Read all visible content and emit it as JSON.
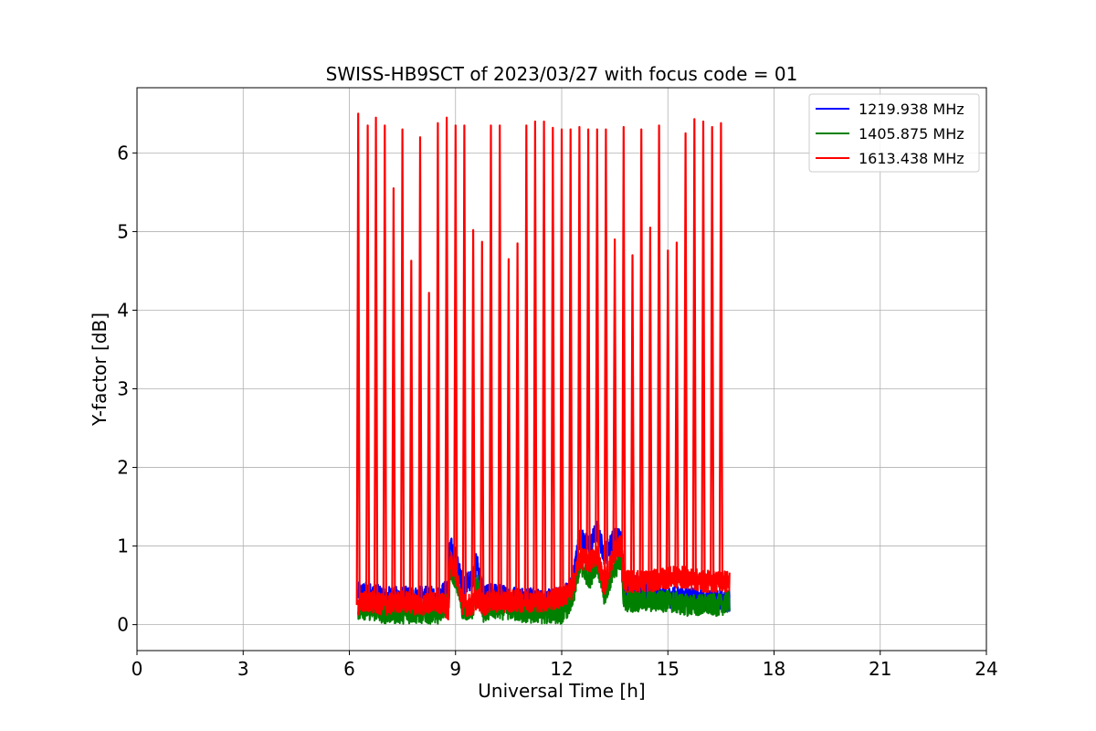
{
  "chart_data": {
    "type": "line",
    "title": "SWISS-HB9SCT of 2023/03/27 with focus code = 01",
    "xlabel": "Universal Time [h]",
    "ylabel": "Y-factor [dB]",
    "xlim": [
      0,
      24
    ],
    "ylim": [
      -0.33,
      6.83
    ],
    "xticks": [
      0,
      3,
      6,
      9,
      12,
      15,
      18,
      21,
      24
    ],
    "yticks": [
      0,
      1,
      2,
      3,
      4,
      5,
      6
    ],
    "grid": true,
    "legend_position": "top-right",
    "series": [
      {
        "name": "1219.938 MHz",
        "color": "#0000ff",
        "x": [
          6.25,
          6.5,
          7.0,
          7.5,
          8.0,
          8.5,
          8.8,
          8.85,
          9.0,
          9.2,
          9.5,
          9.6,
          9.8,
          10.0,
          10.5,
          11.0,
          11.5,
          12.0,
          12.3,
          12.5,
          12.8,
          13.0,
          13.2,
          13.5,
          13.7,
          13.75,
          14.0,
          14.5,
          15.0,
          15.5,
          16.0,
          16.5,
          16.75
        ],
        "values": [
          0.4,
          0.4,
          0.35,
          0.35,
          0.35,
          0.35,
          0.45,
          1.0,
          0.85,
          0.5,
          0.6,
          0.8,
          0.35,
          0.4,
          0.35,
          0.35,
          0.3,
          0.35,
          0.5,
          1.1,
          1.0,
          1.2,
          0.9,
          1.1,
          1.1,
          0.5,
          0.5,
          0.4,
          0.35,
          0.35,
          0.3,
          0.3,
          0.3
        ]
      },
      {
        "name": "1405.875 MHz",
        "color": "#008000",
        "x": [
          6.25,
          6.5,
          7.0,
          7.5,
          8.0,
          8.5,
          8.8,
          8.85,
          9.0,
          9.2,
          9.5,
          9.6,
          9.8,
          10.0,
          10.5,
          11.0,
          11.5,
          12.0,
          12.3,
          12.5,
          12.8,
          13.0,
          13.2,
          13.5,
          13.7,
          13.75,
          14.0,
          14.5,
          15.0,
          15.5,
          16.0,
          16.5,
          16.75
        ],
        "values": [
          0.2,
          0.2,
          0.15,
          0.15,
          0.15,
          0.15,
          0.3,
          0.7,
          0.6,
          0.2,
          0.2,
          0.55,
          0.15,
          0.2,
          0.2,
          0.15,
          0.15,
          0.15,
          0.3,
          0.75,
          0.6,
          0.8,
          0.35,
          0.75,
          0.75,
          0.3,
          0.3,
          0.3,
          0.3,
          0.25,
          0.25,
          0.25,
          0.3
        ]
      },
      {
        "name": "1613.438 MHz",
        "color": "#ff0000",
        "x": [
          6.25,
          6.5,
          7.0,
          7.5,
          8.0,
          8.5,
          8.8,
          8.85,
          9.0,
          9.2,
          9.5,
          9.6,
          9.8,
          10.0,
          10.5,
          11.0,
          11.5,
          12.0,
          12.3,
          12.5,
          12.8,
          13.0,
          13.2,
          13.5,
          13.7,
          13.75,
          14.0,
          14.5,
          15.0,
          15.5,
          16.0,
          16.5,
          16.75
        ],
        "values": [
          0.25,
          0.3,
          0.25,
          0.3,
          0.25,
          0.3,
          0.2,
          0.8,
          0.7,
          0.25,
          0.25,
          0.35,
          0.25,
          0.3,
          0.3,
          0.3,
          0.3,
          0.35,
          0.45,
          0.85,
          0.8,
          0.9,
          0.5,
          0.95,
          1.0,
          0.55,
          0.55,
          0.55,
          0.6,
          0.6,
          0.55,
          0.55,
          0.55
        ],
        "peaks": {
          "x": [
            6.25,
            6.52,
            6.75,
            7.0,
            7.25,
            7.5,
            7.75,
            8.0,
            8.25,
            8.5,
            8.75,
            9.0,
            9.25,
            9.5,
            9.75,
            10.0,
            10.25,
            10.5,
            10.75,
            11.0,
            11.25,
            11.5,
            11.75,
            12.0,
            12.25,
            12.5,
            12.75,
            13.0,
            13.25,
            13.5,
            13.75,
            14.0,
            14.25,
            14.5,
            14.75,
            15.0,
            15.25,
            15.5,
            15.75,
            16.0,
            16.25,
            16.5
          ],
          "values": [
            6.5,
            6.35,
            6.45,
            6.35,
            5.55,
            6.3,
            4.63,
            6.2,
            4.22,
            6.38,
            6.45,
            6.35,
            6.35,
            5.02,
            4.87,
            6.35,
            6.35,
            4.65,
            4.85,
            6.35,
            6.4,
            6.4,
            6.32,
            6.3,
            6.3,
            6.33,
            6.3,
            6.3,
            6.3,
            4.9,
            6.33,
            4.7,
            6.3,
            5.05,
            6.35,
            4.76,
            4.86,
            6.25,
            6.43,
            6.4,
            6.33,
            6.38
          ]
        }
      }
    ]
  }
}
